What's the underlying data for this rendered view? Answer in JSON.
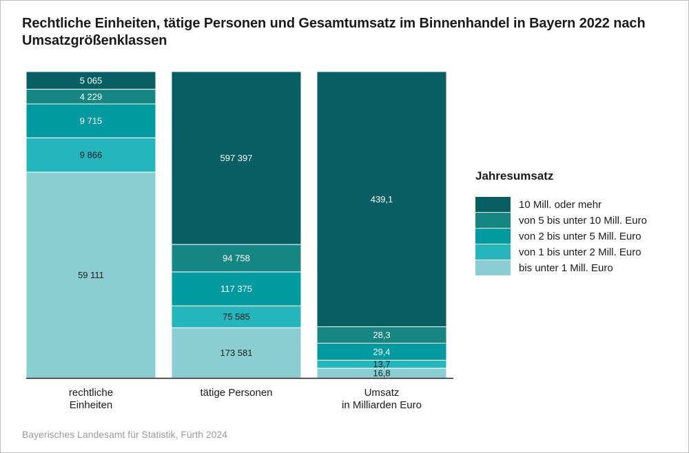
{
  "title": "Rechtliche Einheiten, tätige Personen und Gesamtumsatz im Binnenhandel in Bayern 2022 nach Umsatzgrößenklassen",
  "source": "Bayerisches Landesamt für Statistik, Fürth 2024",
  "legend": {
    "title": "Jahresumsatz",
    "items": [
      {
        "label": "10 Mill. oder mehr",
        "color": "#075e63"
      },
      {
        "label": "von 5 bis unter 10 Mill. Euro",
        "color": "#168683"
      },
      {
        "label": "von 2 bis unter 5 Mill. Euro",
        "color": "#019aa0"
      },
      {
        "label": "von 1 bis unter 2 Mill. Euro",
        "color": "#24b6bc"
      },
      {
        "label": "bis unter 1 Mill. Euro",
        "color": "#8aced3"
      }
    ]
  },
  "chart_data": {
    "type": "bar",
    "stacked": "percent",
    "title": "Rechtliche Einheiten, tätige Personen und Gesamtumsatz im Binnenhandel in Bayern 2022 nach Umsatzgrößenklassen",
    "categories": [
      "rechtliche\nEinheiten",
      "tätige Personen",
      "Umsatz\nin Milliarden Euro"
    ],
    "series": [
      {
        "name": "bis unter 1 Mill. Euro",
        "values": [
          59111,
          173581,
          16.8
        ],
        "labels": [
          "59 111",
          "173 581",
          "16,8"
        ],
        "text_color": "#1a1a1a"
      },
      {
        "name": "von 1 bis unter 2 Mill. Euro",
        "values": [
          9866,
          75585,
          13.7
        ],
        "labels": [
          "9 866",
          "75 585",
          "13,7"
        ],
        "text_color": "#1a1a1a"
      },
      {
        "name": "von 2 bis unter 5 Mill. Euro",
        "values": [
          9715,
          117375,
          29.4
        ],
        "labels": [
          "9 715",
          "117 375",
          "29,4"
        ],
        "text_color": "#ffffff"
      },
      {
        "name": "von 5 bis unter 10 Mill. Euro",
        "values": [
          4229,
          94758,
          28.3
        ],
        "labels": [
          "4 229",
          "94 758",
          "28,3"
        ],
        "text_color": "#ffffff"
      },
      {
        "name": "10 Mill. oder mehr",
        "values": [
          5065,
          597397,
          439.1
        ],
        "labels": [
          "5 065",
          "597 397",
          "439,1"
        ],
        "text_color": "#ffffff"
      }
    ],
    "ylim": [
      0,
      100
    ],
    "grid": false,
    "legend_position": "right"
  }
}
